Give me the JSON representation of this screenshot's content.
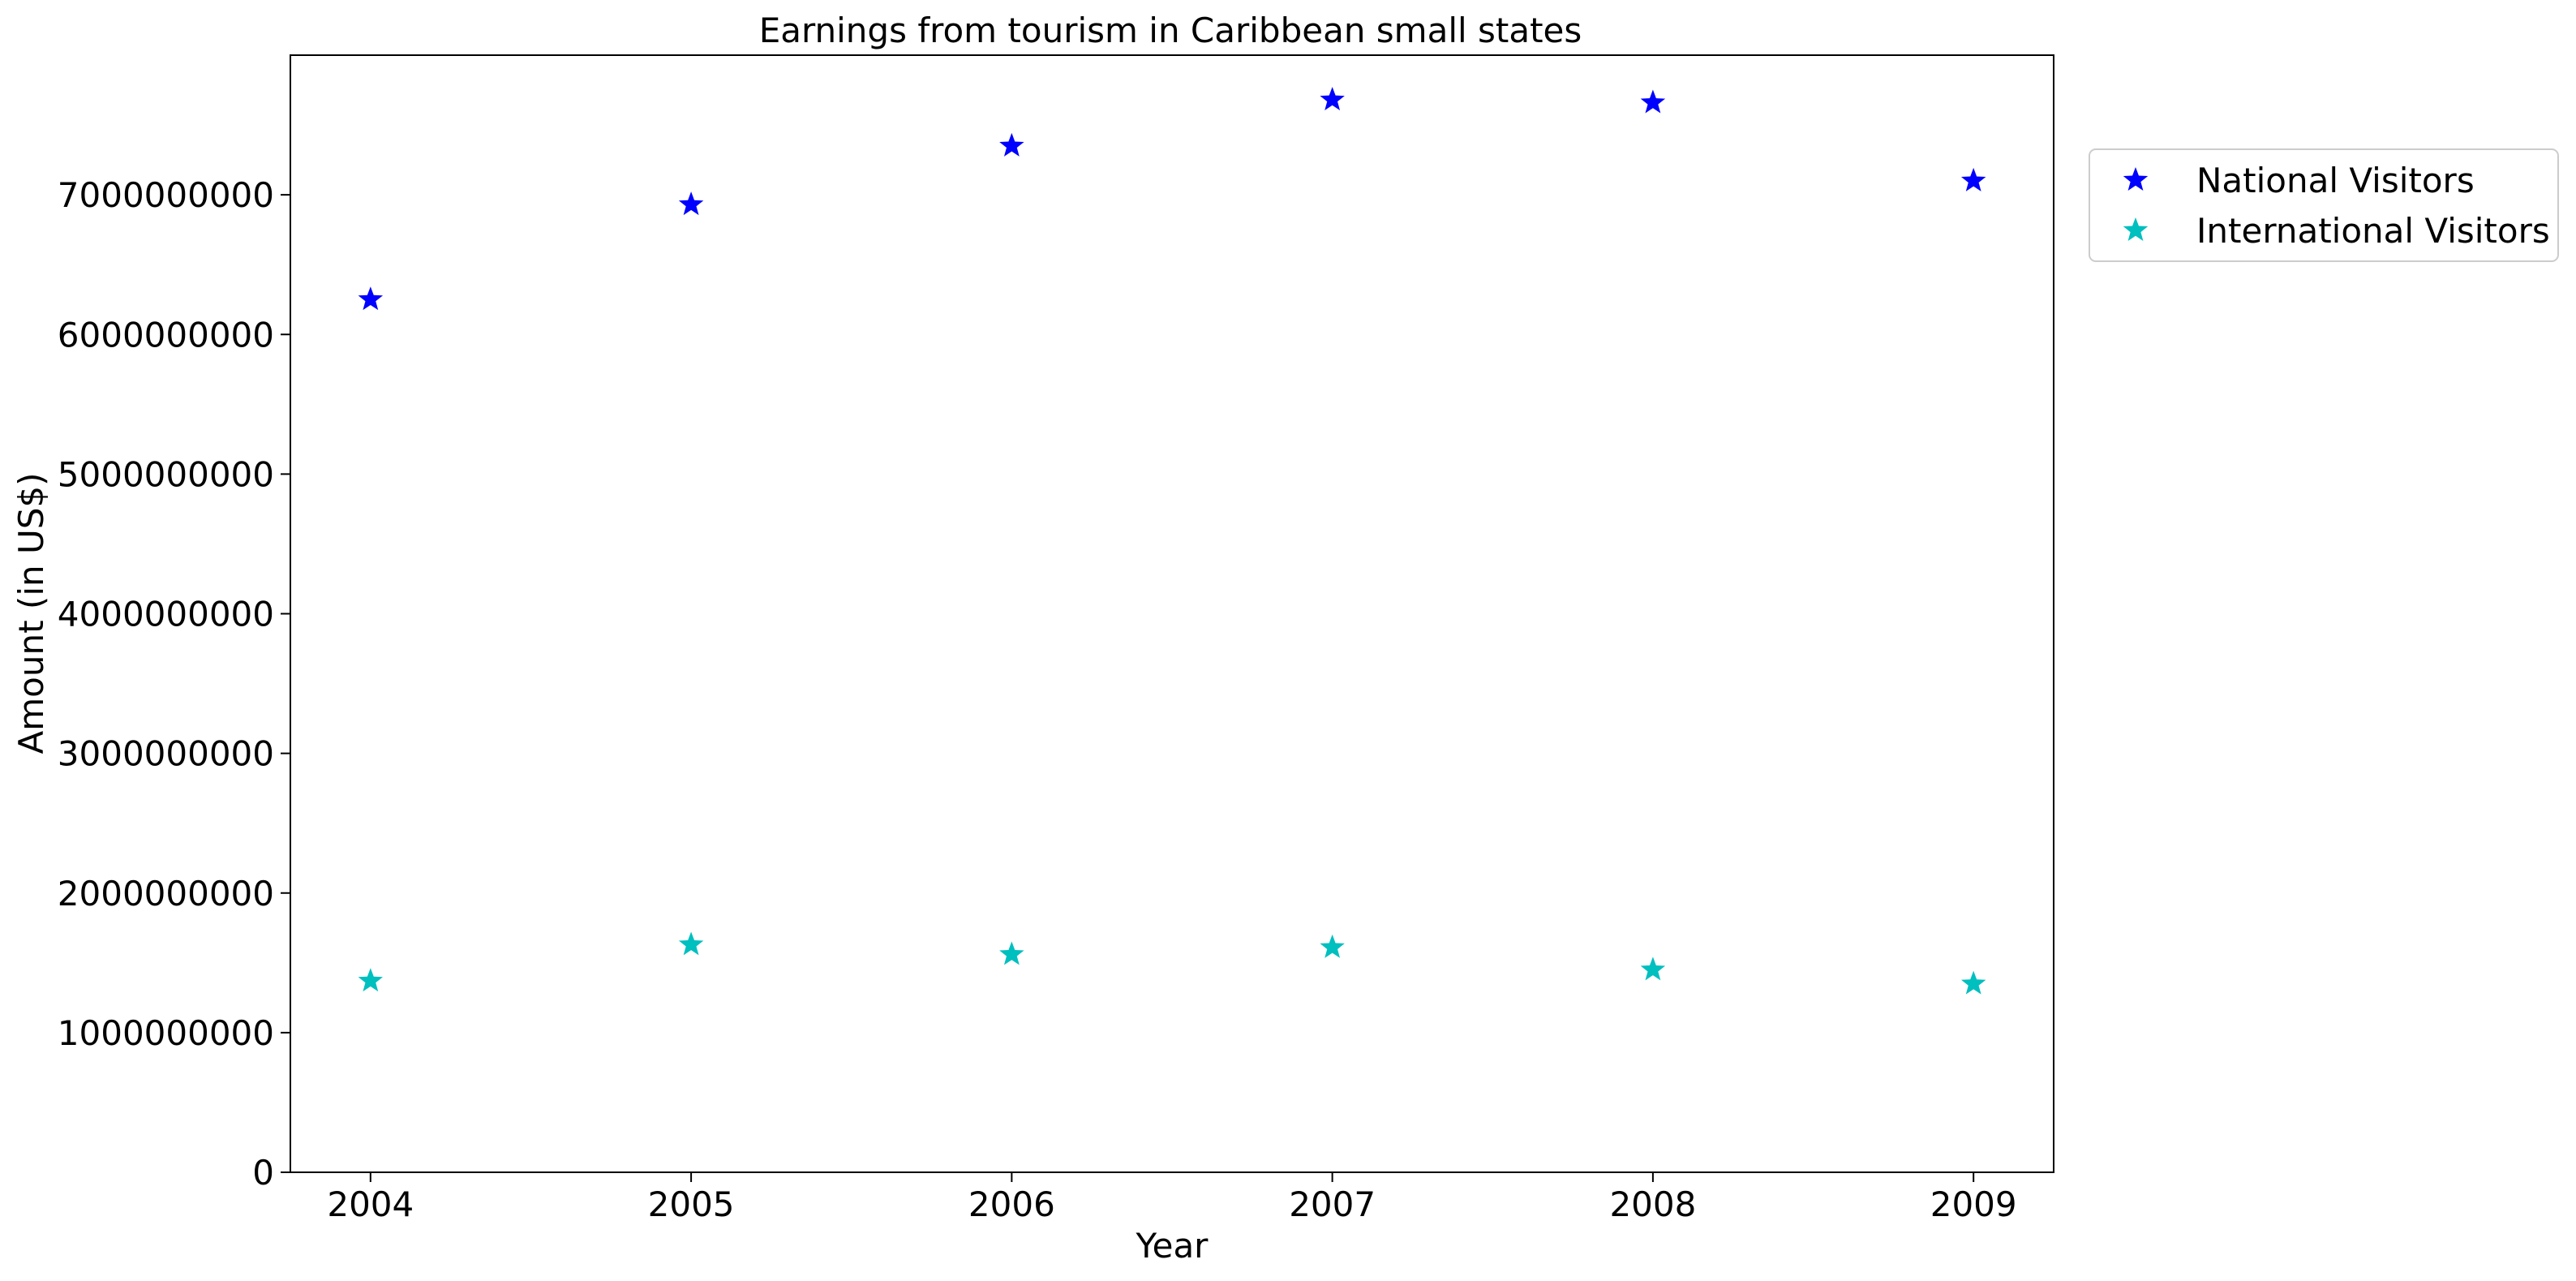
{
  "chart_data": {
    "type": "scatter",
    "title": "Earnings from tourism in Caribbean small states",
    "xlabel": "Year",
    "ylabel": "Amount (in US$)",
    "x": [
      2004,
      2005,
      2006,
      2007,
      2008,
      2009
    ],
    "xlim": [
      2003.75,
      2009.25
    ],
    "ylim": [
      0,
      8000000000
    ],
    "yticks": [
      0,
      1000000000,
      2000000000,
      3000000000,
      4000000000,
      5000000000,
      6000000000,
      7000000000
    ],
    "grid": false,
    "legend_placement": "outside-right-top",
    "marker": "star",
    "series": [
      {
        "name": "National Visitors",
        "color": "#0000ff",
        "values": [
          6250000000,
          6930000000,
          7350000000,
          7680000000,
          7660000000,
          7100000000
        ]
      },
      {
        "name": "International Visitors",
        "color": "#00bfbf",
        "values": [
          1370000000,
          1630000000,
          1560000000,
          1610000000,
          1450000000,
          1350000000
        ]
      }
    ]
  }
}
